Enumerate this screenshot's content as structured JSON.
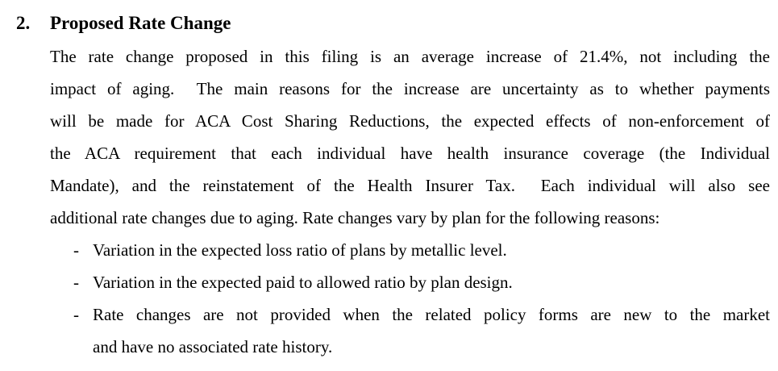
{
  "colors": {
    "text": "#000000",
    "background": "#ffffff"
  },
  "document": {
    "heading": {
      "number": "2.",
      "title": "Proposed Rate Change"
    },
    "paragraph": {
      "lines": [
        "The rate change proposed in this filing is an average increase of 21.4%, not including the",
        "impact of aging.  The main reasons for the increase are uncertainty as to whether payments",
        "will be made for ACA Cost Sharing Reductions, the expected effects of non-enforcement of",
        "the ACA requirement that each individual have health insurance coverage (the Individual",
        "Mandate), and the reinstatement of the Health Insurer Tax.  Each individual will also see",
        "additional rate changes due to aging. Rate changes vary by plan for the following reasons:"
      ]
    },
    "bullets": [
      {
        "marker": "-",
        "lines": [
          "Variation in the expected loss ratio of plans by metallic level."
        ]
      },
      {
        "marker": "-",
        "lines": [
          "Variation in the expected paid to allowed ratio by plan design."
        ]
      },
      {
        "marker": "-",
        "lines": [
          "Rate changes are not provided when the related policy forms are new to the market",
          "and have no associated rate history."
        ]
      }
    ]
  }
}
